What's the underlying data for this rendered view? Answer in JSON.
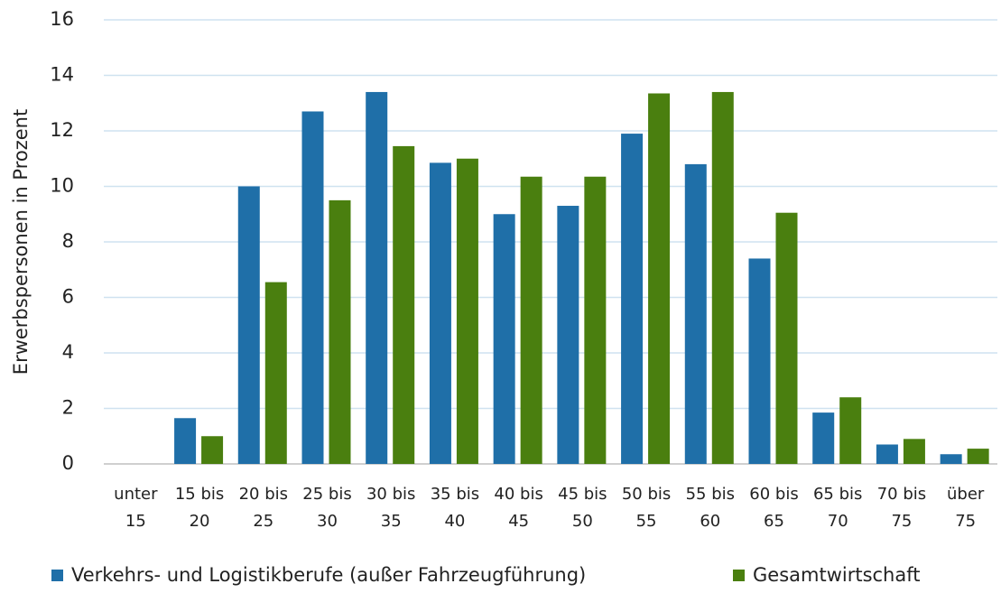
{
  "chart_data": {
    "type": "bar",
    "y_label": "Erwerbspersonen in Prozent",
    "categories": [
      "unter 15",
      "15 bis 20",
      "20 bis 25",
      "25 bis 30",
      "30 bis 35",
      "35 bis 40",
      "40 bis 45",
      "45 bis 50",
      "50 bis 55",
      "55 bis 60",
      "60 bis 65",
      "65 bis 70",
      "70 bis 75",
      "über 75"
    ],
    "series": [
      {
        "name": "Verkehrs- und Logistikberufe (außer Fahrzeugführung)",
        "color": "#1f6fa8",
        "values": [
          0,
          1.65,
          10,
          12.7,
          13.4,
          10.85,
          9,
          9.3,
          11.9,
          10.8,
          7.4,
          1.85,
          0.7,
          0.35
        ]
      },
      {
        "name": "Gesamtwirtschaft",
        "color": "#4a7f0f",
        "values": [
          0,
          1.0,
          6.55,
          9.5,
          11.45,
          11,
          10.35,
          10.35,
          13.35,
          13.4,
          9.05,
          2.4,
          0.9,
          0.55
        ]
      }
    ],
    "ylim": [
      0,
      16
    ],
    "yticks": [
      0,
      2,
      4,
      6,
      8,
      10,
      12,
      14,
      16
    ],
    "grid": true,
    "legend": "bottom"
  }
}
